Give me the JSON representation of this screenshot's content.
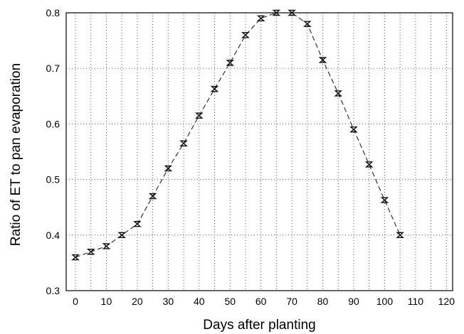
{
  "chart_data": {
    "type": "line",
    "xlabel": "Days after planting",
    "ylabel": "Ratio of ET to pan evaporation",
    "xlim": [
      -3,
      122
    ],
    "ylim": [
      0.3,
      0.8
    ],
    "xticks": [
      0,
      10,
      20,
      30,
      40,
      50,
      60,
      70,
      80,
      90,
      100,
      110,
      120
    ],
    "yticks": [
      0.3,
      0.4,
      0.5,
      0.6,
      0.7,
      0.8
    ],
    "xtick_labels": [
      "0",
      "10",
      "20",
      "30",
      "40",
      "50",
      "60",
      "70",
      "80",
      "90",
      "100",
      "110",
      "120"
    ],
    "ytick_labels": [
      "0.3",
      "0.4",
      "0.5",
      "0.6",
      "0.7",
      "0.8"
    ],
    "xgrid_step": 5,
    "grid": true,
    "series": [
      {
        "x": [
          0,
          5,
          10,
          15,
          20,
          25,
          30,
          35,
          40,
          45,
          50,
          55,
          60,
          65,
          70,
          75,
          80,
          85,
          90,
          95,
          100,
          105
        ],
        "values": [
          0.36,
          0.37,
          0.38,
          0.4,
          0.42,
          0.47,
          0.52,
          0.565,
          0.615,
          0.663,
          0.71,
          0.76,
          0.79,
          0.8,
          0.8,
          0.78,
          0.715,
          0.655,
          0.59,
          0.527,
          0.463,
          0.4
        ]
      }
    ]
  }
}
